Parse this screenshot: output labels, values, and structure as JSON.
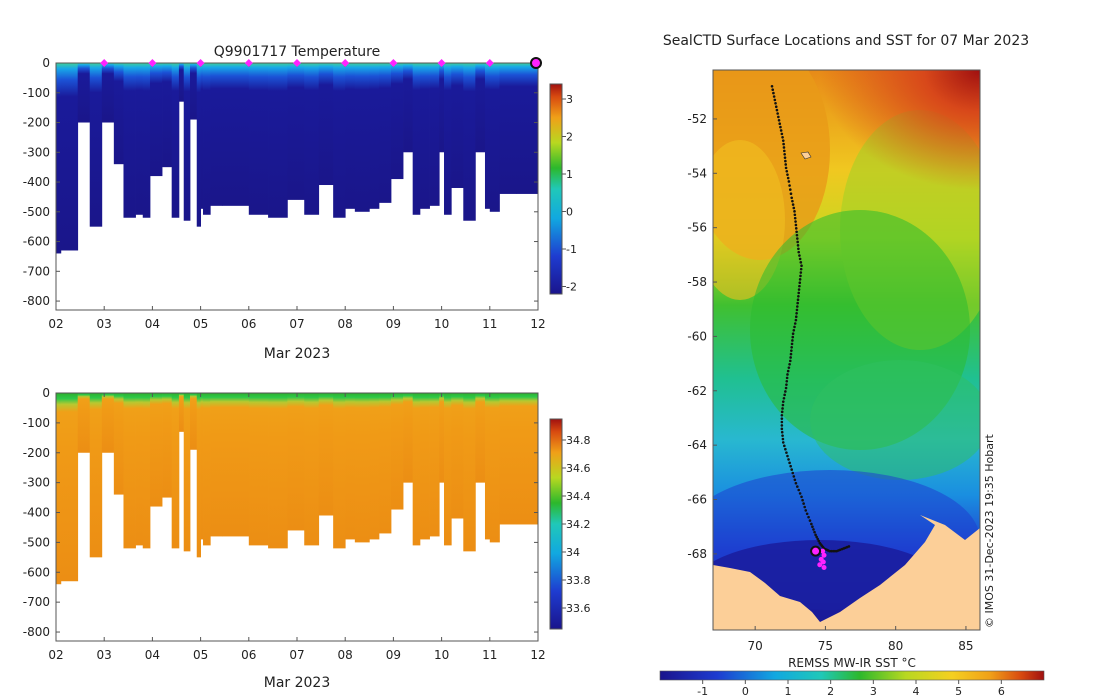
{
  "chart_data": [
    {
      "type": "heatmap",
      "name": "temperature-section",
      "title": "Q9901717  Temperature",
      "xlabel": "Mar 2023",
      "x_ticks": [
        "02",
        "03",
        "04",
        "05",
        "06",
        "07",
        "08",
        "09",
        "10",
        "11",
        "12"
      ],
      "x_range": [
        2,
        12
      ],
      "y_ticks": [
        0,
        -100,
        -200,
        -300,
        -400,
        -500,
        -600,
        -700,
        -800
      ],
      "ylim": [
        -830,
        0
      ],
      "colorbar": {
        "ticks": [
          3,
          2,
          1,
          0,
          -1,
          -2
        ],
        "range": [
          -2.2,
          3.4
        ]
      },
      "profile_markers_day": [
        3,
        4,
        5,
        6,
        7,
        8,
        9,
        10,
        11
      ],
      "current_marker_day": 12,
      "profile_depth_bottom": [
        [
          2.0,
          2.1,
          -640
        ],
        [
          2.1,
          2.45,
          -630
        ],
        [
          2.45,
          2.7,
          -200
        ],
        [
          2.7,
          2.95,
          -550
        ],
        [
          2.95,
          3.2,
          -200
        ],
        [
          3.2,
          3.4,
          -340
        ],
        [
          3.4,
          3.65,
          -520
        ],
        [
          3.65,
          3.8,
          -510
        ],
        [
          3.8,
          3.95,
          -520
        ],
        [
          3.95,
          4.2,
          -380
        ],
        [
          4.2,
          4.4,
          -350
        ],
        [
          4.4,
          4.55,
          -520
        ],
        [
          4.55,
          4.65,
          -130
        ],
        [
          4.65,
          4.78,
          -530
        ],
        [
          4.78,
          4.92,
          -190
        ],
        [
          4.92,
          5.0,
          -550
        ],
        [
          5.0,
          5.05,
          -490
        ],
        [
          5.05,
          5.2,
          -510
        ],
        [
          5.2,
          5.45,
          -480
        ],
        [
          5.45,
          6.0,
          -480
        ],
        [
          6.0,
          6.4,
          -510
        ],
        [
          6.4,
          6.8,
          -520
        ],
        [
          6.8,
          7.15,
          -460
        ],
        [
          7.15,
          7.45,
          -510
        ],
        [
          7.45,
          7.75,
          -410
        ],
        [
          7.75,
          8.0,
          -520
        ],
        [
          8.0,
          8.2,
          -490
        ],
        [
          8.2,
          8.5,
          -500
        ],
        [
          8.5,
          8.7,
          -490
        ],
        [
          8.7,
          8.95,
          -470
        ],
        [
          8.95,
          9.2,
          -390
        ],
        [
          9.2,
          9.4,
          -300
        ],
        [
          9.4,
          9.55,
          -510
        ],
        [
          9.55,
          9.75,
          -490
        ],
        [
          9.75,
          9.95,
          -480
        ],
        [
          9.95,
          10.05,
          -300
        ],
        [
          10.05,
          10.2,
          -510
        ],
        [
          10.2,
          10.45,
          -420
        ],
        [
          10.45,
          10.7,
          -530
        ],
        [
          10.7,
          10.9,
          -300
        ],
        [
          10.9,
          11.0,
          -490
        ],
        [
          11.0,
          11.2,
          -500
        ],
        [
          11.2,
          11.55,
          -440
        ],
        [
          11.55,
          12.0,
          -440
        ]
      ]
    },
    {
      "type": "heatmap",
      "name": "salinity-section",
      "title": "",
      "xlabel": "Mar 2023",
      "x_ticks": [
        "02",
        "03",
        "04",
        "05",
        "06",
        "07",
        "08",
        "09",
        "10",
        "11",
        "12"
      ],
      "x_range": [
        2,
        12
      ],
      "y_ticks": [
        0,
        -100,
        -200,
        -300,
        -400,
        -500,
        -600,
        -700,
        -800
      ],
      "ylim": [
        -830,
        0
      ],
      "colorbar": {
        "ticks": [
          34.8,
          34.6,
          34.4,
          34.2,
          34,
          33.8,
          33.6
        ],
        "range": [
          33.45,
          34.95
        ]
      }
    },
    {
      "type": "heatmap",
      "name": "sst-map",
      "title": "SealCTD Surface Locations and SST for 07 Mar 2023",
      "xlabel": "",
      "x_ticks": [
        70,
        75,
        80,
        85
      ],
      "xlim": [
        67,
        86
      ],
      "y_ticks": [
        -52,
        -54,
        -56,
        -58,
        -60,
        -62,
        -64,
        -66,
        -68
      ],
      "ylim": [
        -70.8,
        -50.2
      ],
      "colorbar": {
        "label": "REMSS MW-IR SST °C",
        "ticks": [
          -1,
          0,
          1,
          2,
          3,
          4,
          5,
          6
        ],
        "range": [
          -2,
          7
        ]
      },
      "credit": "© IMOS 31-Dec-2023 19:35 Hobart",
      "track": [
        [
          71.2,
          -50.8
        ],
        [
          71.4,
          -51.3
        ],
        [
          71.6,
          -51.8
        ],
        [
          71.8,
          -52.3
        ],
        [
          72.0,
          -52.8
        ],
        [
          72.1,
          -53.3
        ],
        [
          72.2,
          -53.8
        ],
        [
          72.4,
          -54.3
        ],
        [
          72.6,
          -54.9
        ],
        [
          72.8,
          -55.4
        ],
        [
          72.9,
          -55.9
        ],
        [
          73.0,
          -56.4
        ],
        [
          73.1,
          -56.9
        ],
        [
          73.3,
          -57.4
        ],
        [
          73.2,
          -57.9
        ],
        [
          73.1,
          -58.4
        ],
        [
          73.0,
          -58.9
        ],
        [
          72.9,
          -59.4
        ],
        [
          72.7,
          -59.9
        ],
        [
          72.6,
          -60.4
        ],
        [
          72.5,
          -60.9
        ],
        [
          72.3,
          -61.4
        ],
        [
          72.2,
          -61.9
        ],
        [
          72.0,
          -62.4
        ],
        [
          71.9,
          -62.9
        ],
        [
          71.9,
          -63.4
        ],
        [
          72.0,
          -63.9
        ],
        [
          72.3,
          -64.4
        ],
        [
          72.6,
          -64.9
        ],
        [
          72.9,
          -65.4
        ],
        [
          73.3,
          -65.9
        ],
        [
          73.6,
          -66.4
        ],
        [
          74.0,
          -66.9
        ],
        [
          74.3,
          -67.3
        ],
        [
          74.6,
          -67.6
        ],
        [
          74.9,
          -67.8
        ],
        [
          75.3,
          -67.9
        ],
        [
          75.8,
          -67.9
        ],
        [
          76.3,
          -67.8
        ],
        [
          76.8,
          -67.7
        ]
      ],
      "sealctd_profiles": [
        [
          74.8,
          -67.9
        ],
        [
          74.9,
          -68.05
        ],
        [
          74.7,
          -68.2
        ],
        [
          74.85,
          -68.3
        ],
        [
          74.6,
          -68.4
        ],
        [
          74.9,
          -68.5
        ]
      ],
      "latest_location": [
        74.3,
        -67.9
      ]
    }
  ]
}
